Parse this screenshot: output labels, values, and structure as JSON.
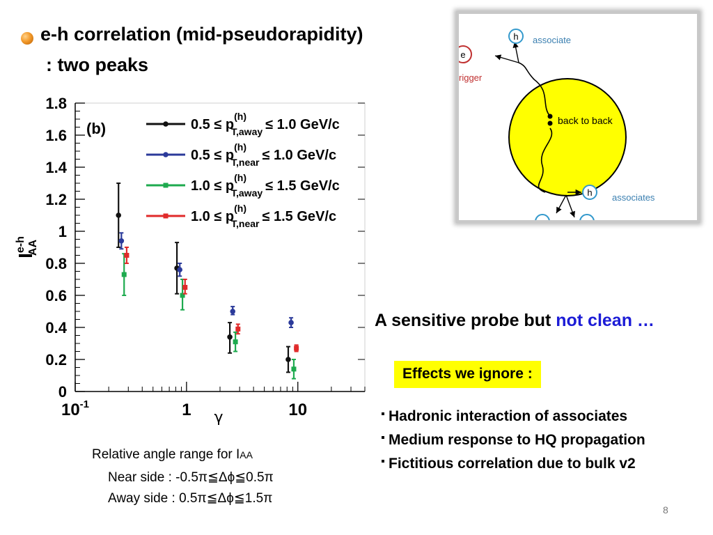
{
  "title": {
    "line1": "e-h correlation (mid-pseudorapidity)",
    "line2": ": two peaks"
  },
  "diagram": {
    "label_trigger": "rigger",
    "label_e": "e",
    "label_h": "h",
    "label_associate": "associate",
    "label_back_to_back": "back  to back",
    "label_associates": "associates",
    "circle_color": "#ffff00",
    "accent_color": "#3399cc"
  },
  "probe": {
    "text_black": "A sensitive probe but ",
    "text_blue": "not clean …"
  },
  "effects": {
    "heading": "Effects we ignore :",
    "items": [
      "Hadronic interaction of associates",
      "Medium response to HQ propagation",
      "Fictitious correlation due to bulk v2"
    ]
  },
  "caption": {
    "line1_prefix": "Relative angle range for I",
    "line1_sub": "AA",
    "near": "Near side : -0.5π≦Δϕ≦0.5π",
    "away": "Away side : 0.5π≦Δϕ≦1.5π"
  },
  "page_number": "8",
  "chart_data": {
    "type": "scatter",
    "panel_label": "(b)",
    "xlabel": "γ",
    "ylabel_main": "I",
    "ylabel_sup": "e-h",
    "ylabel_sub": "AA",
    "xscale": "log",
    "xlim": [
      0.1,
      40
    ],
    "ylim": [
      0,
      1.8
    ],
    "yticks": [
      0,
      0.2,
      0.4,
      0.6,
      0.8,
      1,
      1.2,
      1.4,
      1.6,
      1.8
    ],
    "ytick_labels": [
      "0",
      "0.2",
      "0.4",
      "0.6",
      "0.8",
      "1",
      "1.2",
      "1.4",
      "1.6",
      "1.8"
    ],
    "xticks": [
      0.1,
      1,
      10
    ],
    "xtick_base": "10",
    "xtick_exp": "-1",
    "xtick_labels": [
      "",
      "1",
      "10"
    ],
    "legend_placement": "top-right",
    "series": [
      {
        "legend_prefix": "0.5 ≤ p",
        "legend_sup": "(h)",
        "legend_sub": "T,away",
        "legend_suffix": "≤ 1.0 GeV/c",
        "color": "#111111",
        "marker": "circle",
        "points": [
          {
            "x": 0.245,
            "y": 1.1,
            "lo": 0.9,
            "hi": 1.3
          },
          {
            "x": 0.82,
            "y": 0.77,
            "lo": 0.61,
            "hi": 0.93
          },
          {
            "x": 2.45,
            "y": 0.34,
            "lo": 0.24,
            "hi": 0.43
          },
          {
            "x": 8.2,
            "y": 0.2,
            "lo": 0.12,
            "hi": 0.28
          }
        ]
      },
      {
        "legend_prefix": "0.5 ≤ p",
        "legend_sup": "(h)",
        "legend_sub": "T,near",
        "legend_suffix": "≤ 1.0 GeV/c",
        "color": "#2b3a9a",
        "marker": "circle",
        "points": [
          {
            "x": 0.26,
            "y": 0.94,
            "lo": 0.89,
            "hi": 0.99
          },
          {
            "x": 0.87,
            "y": 0.76,
            "lo": 0.72,
            "hi": 0.8
          },
          {
            "x": 2.6,
            "y": 0.5,
            "lo": 0.48,
            "hi": 0.53
          },
          {
            "x": 8.7,
            "y": 0.43,
            "lo": 0.4,
            "hi": 0.46
          }
        ]
      },
      {
        "legend_prefix": "1.0 ≤ p",
        "legend_sup": "(h)",
        "legend_sub": "T,away",
        "legend_suffix": "≤ 1.5 GeV/c",
        "color": "#1daa4e",
        "marker": "square",
        "points": [
          {
            "x": 0.275,
            "y": 0.73,
            "lo": 0.6,
            "hi": 0.86
          },
          {
            "x": 0.92,
            "y": 0.6,
            "lo": 0.51,
            "hi": 0.7
          },
          {
            "x": 2.75,
            "y": 0.31,
            "lo": 0.25,
            "hi": 0.37
          },
          {
            "x": 9.2,
            "y": 0.14,
            "lo": 0.08,
            "hi": 0.2
          }
        ]
      },
      {
        "legend_prefix": "1.0 ≤ p",
        "legend_sup": "(h)",
        "legend_sub": "T,near",
        "legend_suffix": "≤ 1.5 GeV/c",
        "color": "#e02a2a",
        "marker": "square",
        "points": [
          {
            "x": 0.29,
            "y": 0.85,
            "lo": 0.8,
            "hi": 0.9
          },
          {
            "x": 0.97,
            "y": 0.65,
            "lo": 0.61,
            "hi": 0.7
          },
          {
            "x": 2.9,
            "y": 0.39,
            "lo": 0.36,
            "hi": 0.42
          },
          {
            "x": 9.7,
            "y": 0.27,
            "lo": 0.25,
            "hi": 0.29
          }
        ]
      }
    ]
  }
}
